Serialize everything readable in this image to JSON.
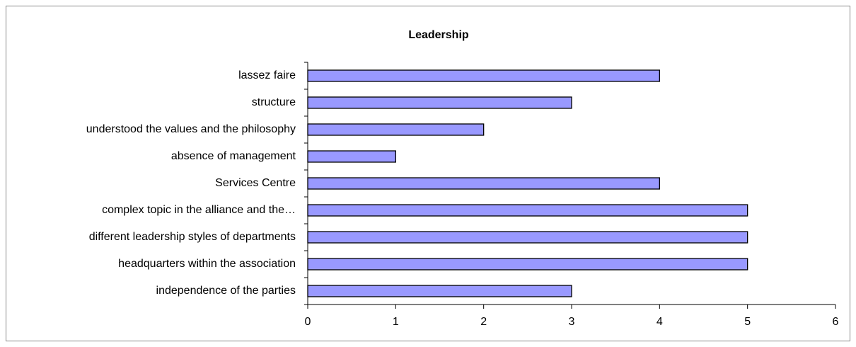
{
  "chart_data": {
    "type": "bar",
    "orientation": "horizontal",
    "title": "Leadership",
    "categories": [
      "lassez faire",
      "structure",
      "understood the values and the philosophy",
      "absence of management",
      "Services Centre",
      "complex topic in the alliance and the…",
      "different leadership styles of departments",
      "headquarters within the association",
      "independence of the parties"
    ],
    "values": [
      4,
      3,
      2,
      1,
      4,
      5,
      5,
      5,
      3
    ],
    "color": "#9999ff",
    "xlim": [
      0,
      6
    ],
    "xticks": [
      0,
      1,
      2,
      3,
      4,
      5,
      6
    ],
    "grid": false
  }
}
